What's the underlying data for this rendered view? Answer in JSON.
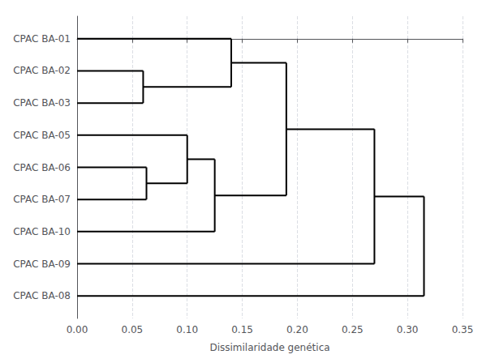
{
  "chart_data": {
    "type": "dendrogram",
    "xlabel": "Dissimilaridade genética",
    "categories": [
      "CPAC BA-01",
      "CPAC BA-02",
      "CPAC BA-03",
      "CPAC BA-05",
      "CPAC BA-06",
      "CPAC BA-07",
      "CPAC BA-10",
      "CPAC BA-09",
      "CPAC BA-08"
    ],
    "tree": {
      "height": 0.315,
      "children": [
        {
          "height": 0.27,
          "children": [
            {
              "height": 0.19,
              "children": [
                {
                  "height": 0.14,
                  "children": [
                    "CPAC BA-01",
                    {
                      "height": 0.06,
                      "children": [
                        "CPAC BA-02",
                        "CPAC BA-03"
                      ]
                    }
                  ]
                },
                {
                  "height": 0.125,
                  "children": [
                    {
                      "height": 0.1,
                      "children": [
                        "CPAC BA-05",
                        {
                          "height": 0.063,
                          "children": [
                            "CPAC BA-06",
                            "CPAC BA-07"
                          ]
                        }
                      ]
                    },
                    "CPAC BA-10"
                  ]
                }
              ]
            },
            "CPAC BA-09"
          ]
        },
        "CPAC BA-08"
      ]
    },
    "xlim": [
      0.0,
      0.35
    ],
    "xticks": [
      {
        "value": 0.0,
        "label": "0.00"
      },
      {
        "value": 0.05,
        "label": "0.05"
      },
      {
        "value": 0.1,
        "label": "0.10"
      },
      {
        "value": 0.15,
        "label": "0.15"
      },
      {
        "value": 0.2,
        "label": "0.20"
      },
      {
        "value": 0.25,
        "label": "0.25"
      },
      {
        "value": 0.3,
        "label": "0.30"
      },
      {
        "value": 0.35,
        "label": "0.35"
      }
    ],
    "color": "#000000",
    "grid": true
  }
}
